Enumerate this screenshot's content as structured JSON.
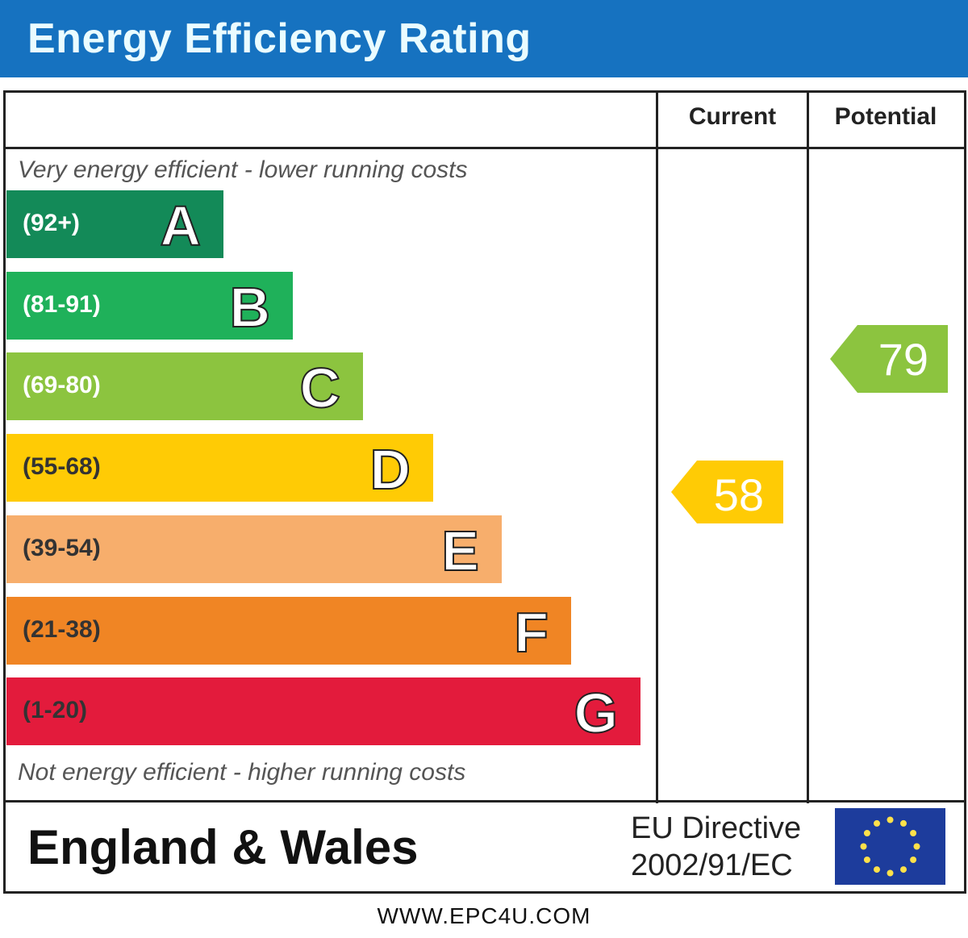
{
  "title": "Energy Efficiency Rating",
  "columns": {
    "current": "Current",
    "potential": "Potential"
  },
  "top_note": "Very energy efficient - lower running costs",
  "bottom_note": "Not energy efficient - higher running costs",
  "footer": {
    "region": "England & Wales",
    "directive_line1": "EU Directive",
    "directive_line2": "2002/91/EC",
    "flag": "eu-flag-icon",
    "url": "WWW.EPC4U.COM"
  },
  "chart_data": {
    "type": "bar",
    "title": "Energy Efficiency Rating",
    "bands": [
      {
        "letter": "A",
        "range": "(92+)",
        "min": 92,
        "max": 100,
        "color": "#138a58"
      },
      {
        "letter": "B",
        "range": "(81-91)",
        "min": 81,
        "max": 91,
        "color": "#1fb15a"
      },
      {
        "letter": "C",
        "range": "(69-80)",
        "min": 69,
        "max": 80,
        "color": "#8cc43f"
      },
      {
        "letter": "D",
        "range": "(55-68)",
        "min": 55,
        "max": 68,
        "color": "#ffcb05"
      },
      {
        "letter": "E",
        "range": "(39-54)",
        "min": 39,
        "max": 54,
        "color": "#f7ae6c"
      },
      {
        "letter": "F",
        "range": "(21-38)",
        "min": 21,
        "max": 38,
        "color": "#f08524"
      },
      {
        "letter": "G",
        "range": "(1-20)",
        "min": 1,
        "max": 20,
        "color": "#e31b3c"
      }
    ],
    "current": {
      "value": 58,
      "label": "58",
      "band": "D",
      "color": "#ffcb05"
    },
    "potential": {
      "value": 79,
      "label": "79",
      "band": "C",
      "color": "#8cc43f"
    }
  }
}
